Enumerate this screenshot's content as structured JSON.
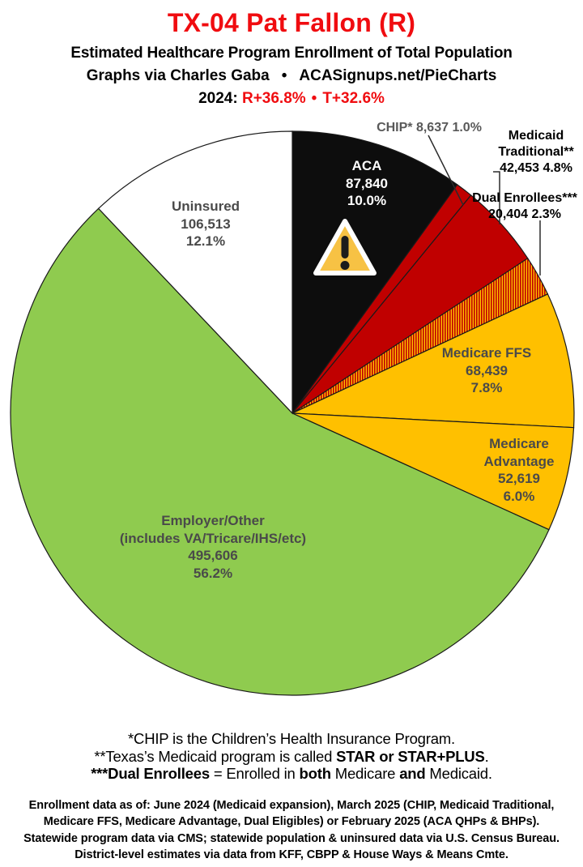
{
  "colors": {
    "title-red": "#F00C10",
    "slice-label-gray": "#4A4A4A",
    "callout-gray": "#595959",
    "leader-line": "#2B2B2B",
    "slice-outline": "#1A1A1A"
  },
  "header": {
    "title": "TX-04 Pat Fallon (R)",
    "subtitle": "Estimated Healthcare Program Enrollment of Total Population",
    "byline_left": "Graphs via Charles Gaba",
    "byline_sep": "•",
    "byline_right": "ACASignups.net/PieCharts",
    "year_label": "2024:",
    "metric_r": "R+36.8%",
    "metric_sep": "•",
    "metric_t": "T+32.6%"
  },
  "chart_data": {
    "type": "pie",
    "title": "Estimated Healthcare Program Enrollment of Total Population",
    "unit": "people",
    "total": 882511,
    "start_angle_deg": 0,
    "direction": "clockwise",
    "legend_position": "none",
    "slices": [
      {
        "id": "aca",
        "label": "ACA",
        "value": 87840,
        "value_fmt": "87,840",
        "pct": "10.0%",
        "color": "#0D0D0D"
      },
      {
        "id": "chip",
        "label": "CHIP*",
        "value": 8637,
        "value_fmt": "8,637",
        "pct": "1.0%",
        "color": "#C00000"
      },
      {
        "id": "medicaid-traditional",
        "label": "Medicaid Traditional**",
        "value": 42453,
        "value_fmt": "42,453",
        "pct": "4.8%",
        "color": "#C00000"
      },
      {
        "id": "dual-enrollees",
        "label": "Dual Enrollees***",
        "value": 20404,
        "value_fmt": "20,404",
        "pct": "2.3%",
        "color": "pattern:dual-hatch"
      },
      {
        "id": "medicare-ffs",
        "label": "Medicare FFS",
        "value": 68439,
        "value_fmt": "68,439",
        "pct": "7.8%",
        "color": "#FFC000"
      },
      {
        "id": "medicare-advantage",
        "label": "Medicare Advantage",
        "value": 52619,
        "value_fmt": "52,619",
        "pct": "6.0%",
        "color": "#FFC000"
      },
      {
        "id": "employer-other",
        "label": "Employer/Other (includes VA/Tricare/IHS/etc)",
        "value": 495606,
        "value_fmt": "495,606",
        "pct": "56.2%",
        "color": "#8FCB4F"
      },
      {
        "id": "uninsured",
        "label": "Uninsured",
        "value": 106513,
        "value_fmt": "106,513",
        "pct": "12.1%",
        "color": "#FFFFFF"
      }
    ],
    "hatch": {
      "base": "#FFC000",
      "stripe": "#C00000"
    }
  },
  "slice_labels": {
    "aca": {
      "line1": "ACA",
      "line2": "87,840",
      "line3": "10.0%"
    },
    "uninsured": {
      "line1": "Uninsured",
      "line2": "106,513",
      "line3": "12.1%"
    },
    "medicare_ffs": {
      "line1": "Medicare FFS",
      "line2": "68,439",
      "line3": "7.8%"
    },
    "medicare_adv": {
      "line1": "Medicare",
      "line2": "Advantage",
      "line3": "52,619",
      "line4": "6.0%"
    },
    "employer": {
      "line1": "Employer/Other",
      "line2": "(includes VA/Tricare/IHS/etc)",
      "line3": "495,606",
      "line4": "56.2%"
    },
    "chip_callout": {
      "line1": "CHIP* 8,637 1.0%"
    },
    "medicaid_callout": {
      "line1": "Medicaid",
      "line2": "Traditional**",
      "line3": "42,453 4.8%"
    },
    "dual_callout": {
      "line1": "Dual Enrollees***",
      "line2": "20,404 2.3%"
    }
  },
  "footnotes": {
    "line1": "*CHIP is the Children’s Health Insurance Program.",
    "line2_pre": "**Texas’s Medicaid program is called ",
    "line2_bold": "STAR or STAR+PLUS",
    "line2_post": ".",
    "line3_bold1": "***Dual Enrollees",
    "line3_mid1": " = Enrolled in ",
    "line3_bold2": "both",
    "line3_mid2": " Medicare ",
    "line3_bold3": "and",
    "line3_post": " Medicaid."
  },
  "source": {
    "line1": "Enrollment data as of: June 2024 (Medicaid expansion), March 2025 (CHIP, Medicaid Traditional,",
    "line2": "Medicare FFS, Medicare Advantage, Dual Eligibles) or February 2025 (ACA QHPs & BHPs).",
    "line3": "Statewide program data via CMS; statewide population & uninsured data via U.S. Census Bureau.",
    "line4": "District-level estimates via data from KFF, CBPP & House Ways & Means Cmte."
  }
}
